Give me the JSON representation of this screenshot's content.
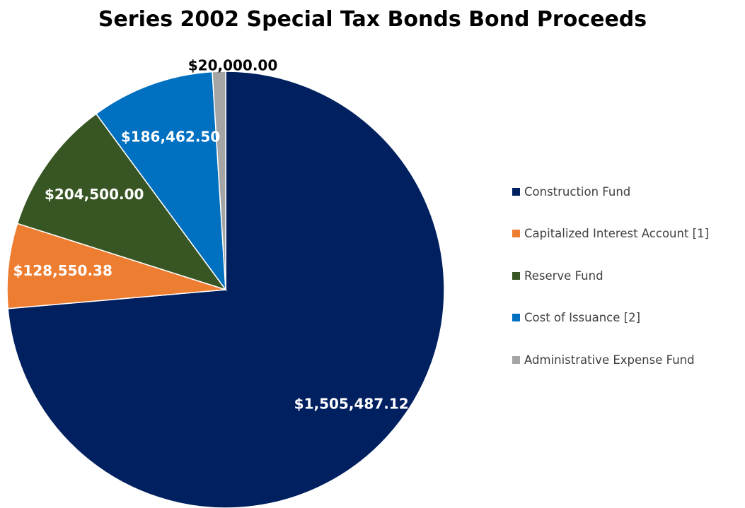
{
  "chart_data": {
    "type": "pie",
    "title": "Series 2002 Special Tax Bonds Bond Proceeds",
    "categories": [
      "Construction Fund",
      "Capitalized Interest Account [1]",
      "Reserve Fund",
      "Cost of Issuance [2]",
      "Administrative Expense Fund"
    ],
    "values": [
      1505487.12,
      128550.38,
      204500.0,
      186462.5,
      20000.0
    ],
    "data_labels": [
      "$1,505,487.12",
      "$128,550.38",
      "$204,500.00",
      "$186,462.50",
      "$20,000.00"
    ],
    "colors": [
      "#002060",
      "#ED7D31",
      "#375623",
      "#0070C0",
      "#A5A5A5"
    ],
    "label_colors": [
      "#ffffff",
      "#ffffff",
      "#ffffff",
      "#ffffff",
      "#000000"
    ],
    "legend_position": "right",
    "start_angle": "12 o'clock",
    "direction": "clockwise"
  }
}
